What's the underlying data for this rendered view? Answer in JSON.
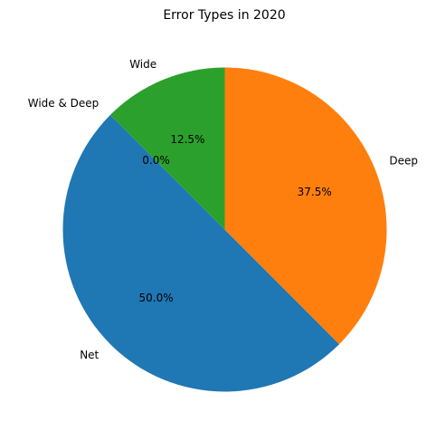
{
  "chart_data": {
    "type": "pie",
    "title": "Error Types in 2020",
    "categories": [
      "Net",
      "Deep",
      "Wide",
      "Wide & Deep"
    ],
    "values": [
      50,
      37.5,
      12.5,
      0
    ],
    "value_labels": [
      "50.0%",
      "37.5%",
      "12.5%",
      "0.0%"
    ],
    "colors": [
      "#1f77b4",
      "#ff7f0e",
      "#2ca02c",
      "#d62728"
    ],
    "start_angle": 135,
    "direction": "counterclockwise"
  }
}
